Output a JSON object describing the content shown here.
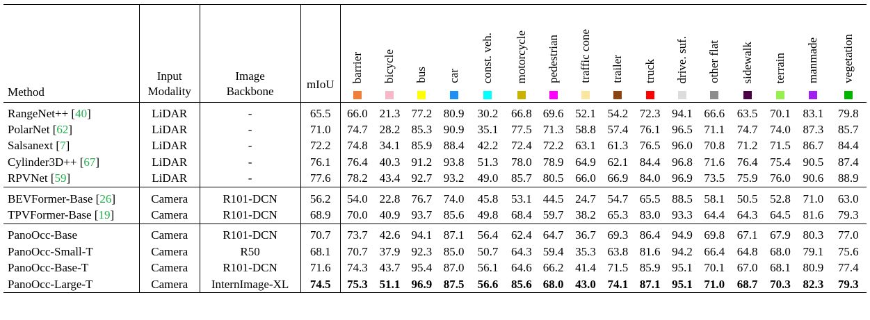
{
  "header": {
    "method": "Method",
    "input_modality": [
      "Input",
      "Modality"
    ],
    "image_backbone": [
      "Image",
      "Backbone"
    ],
    "miou": "mIoU",
    "classes": [
      {
        "name": "barrier",
        "color": "#f07e3a"
      },
      {
        "name": "bicycle",
        "color": "#f6b8c8"
      },
      {
        "name": "bus",
        "color": "#ffff00"
      },
      {
        "name": "car",
        "color": "#1e8ff5"
      },
      {
        "name": "const. veh.",
        "color": "#00ffff"
      },
      {
        "name": "motorcycle",
        "color": "#c8b400"
      },
      {
        "name": "pedestrian",
        "color": "#ff00ff"
      },
      {
        "name": "traffic cone",
        "color": "#fbe6a0"
      },
      {
        "name": "trailer",
        "color": "#8b4513"
      },
      {
        "name": "truck",
        "color": "#ff0000"
      },
      {
        "name": "drive. suf.",
        "color": "#dcdcdc"
      },
      {
        "name": "other flat",
        "color": "#8c8c8c"
      },
      {
        "name": "sidewalk",
        "color": "#4b0046"
      },
      {
        "name": "terrain",
        "color": "#96f050"
      },
      {
        "name": "manmade",
        "color": "#a020f0"
      },
      {
        "name": "vegetation",
        "color": "#00b400"
      }
    ]
  },
  "groups": [
    [
      {
        "name": "RangeNet++",
        "ref": "40",
        "modality": "LiDAR",
        "backbone": "-",
        "miou": "65.5",
        "values": [
          "66.0",
          "21.3",
          "77.2",
          "80.9",
          "30.2",
          "66.8",
          "69.6",
          "52.1",
          "54.2",
          "72.3",
          "94.1",
          "66.6",
          "63.5",
          "70.1",
          "83.1",
          "79.8"
        ]
      },
      {
        "name": "PolarNet",
        "ref": "62",
        "modality": "LiDAR",
        "backbone": "-",
        "miou": "71.0",
        "values": [
          "74.7",
          "28.2",
          "85.3",
          "90.9",
          "35.1",
          "77.5",
          "71.3",
          "58.8",
          "57.4",
          "76.1",
          "96.5",
          "71.1",
          "74.7",
          "74.0",
          "87.3",
          "85.7"
        ]
      },
      {
        "name": "Salsanext",
        "ref": "7",
        "modality": "LiDAR",
        "backbone": "-",
        "miou": "72.2",
        "values": [
          "74.8",
          "34.1",
          "85.9",
          "88.4",
          "42.2",
          "72.4",
          "72.2",
          "63.1",
          "61.3",
          "76.5",
          "96.0",
          "70.8",
          "71.2",
          "71.5",
          "86.7",
          "84.4"
        ]
      },
      {
        "name": "Cylinder3D++",
        "ref": "67",
        "modality": "LiDAR",
        "backbone": "-",
        "miou": "76.1",
        "values": [
          "76.4",
          "40.3",
          "91.2",
          "93.8",
          "51.3",
          "78.0",
          "78.9",
          "64.9",
          "62.1",
          "84.4",
          "96.8",
          "71.6",
          "76.4",
          "75.4",
          "90.5",
          "87.4"
        ]
      },
      {
        "name": "RPVNet",
        "ref": "59",
        "modality": "LiDAR",
        "backbone": "-",
        "miou": "77.6",
        "values": [
          "78.2",
          "43.4",
          "92.7",
          "93.2",
          "49.0",
          "85.7",
          "80.5",
          "66.0",
          "66.9",
          "84.0",
          "96.9",
          "73.5",
          "75.9",
          "76.0",
          "90.6",
          "88.9"
        ]
      }
    ],
    [
      {
        "name": "BEVFormer-Base",
        "ref": "26",
        "modality": "Camera",
        "backbone": "R101-DCN",
        "miou": "56.2",
        "values": [
          "54.0",
          "22.8",
          "76.7",
          "74.0",
          "45.8",
          "53.1",
          "44.5",
          "24.7",
          "54.7",
          "65.5",
          "88.5",
          "58.1",
          "50.5",
          "52.8",
          "71.0",
          "63.0"
        ]
      },
      {
        "name": "TPVFormer-Base",
        "ref": "19",
        "modality": "Camera",
        "backbone": "R101-DCN",
        "miou": "68.9",
        "values": [
          "70.0",
          "40.9",
          "93.7",
          "85.6",
          "49.8",
          "68.4",
          "59.7",
          "38.2",
          "65.3",
          "83.0",
          "93.3",
          "64.4",
          "64.3",
          "64.5",
          "81.6",
          "79.3"
        ]
      }
    ],
    [
      {
        "name": "PanoOcc-Base",
        "ref": "",
        "modality": "Camera",
        "backbone": "R101-DCN",
        "miou": "70.7",
        "values": [
          "73.7",
          "42.6",
          "94.1",
          "87.1",
          "56.4",
          "62.4",
          "64.7",
          "36.7",
          "69.3",
          "86.4",
          "94.9",
          "69.8",
          "67.1",
          "67.9",
          "80.3",
          "77.0"
        ]
      },
      {
        "name": "PanoOcc-Small-T",
        "ref": "",
        "modality": "Camera",
        "backbone": "R50",
        "miou": "68.1",
        "values": [
          "70.7",
          "37.9",
          "92.3",
          "85.0",
          "50.7",
          "64.3",
          "59.4",
          "35.3",
          "63.8",
          "81.6",
          "94.2",
          "66.4",
          "64.8",
          "68.0",
          "79.1",
          "75.6"
        ]
      },
      {
        "name": "PanoOcc-Base-T",
        "ref": "",
        "modality": "Camera",
        "backbone": "R101-DCN",
        "miou": "71.6",
        "values": [
          "74.3",
          "43.7",
          "95.4",
          "87.0",
          "56.1",
          "64.6",
          "66.2",
          "41.4",
          "71.5",
          "85.9",
          "95.1",
          "70.1",
          "67.0",
          "68.1",
          "80.9",
          "77.4"
        ]
      },
      {
        "name": "PanoOcc-Large-T",
        "ref": "",
        "modality": "Camera",
        "backbone": "InternImage-XL",
        "miou": "74.5",
        "values": [
          "75.3",
          "51.1",
          "96.9",
          "87.5",
          "56.6",
          "85.6",
          "68.0",
          "43.0",
          "74.1",
          "87.1",
          "95.1",
          "71.0",
          "68.7",
          "70.3",
          "82.3",
          "79.3"
        ],
        "bold": true
      }
    ]
  ]
}
